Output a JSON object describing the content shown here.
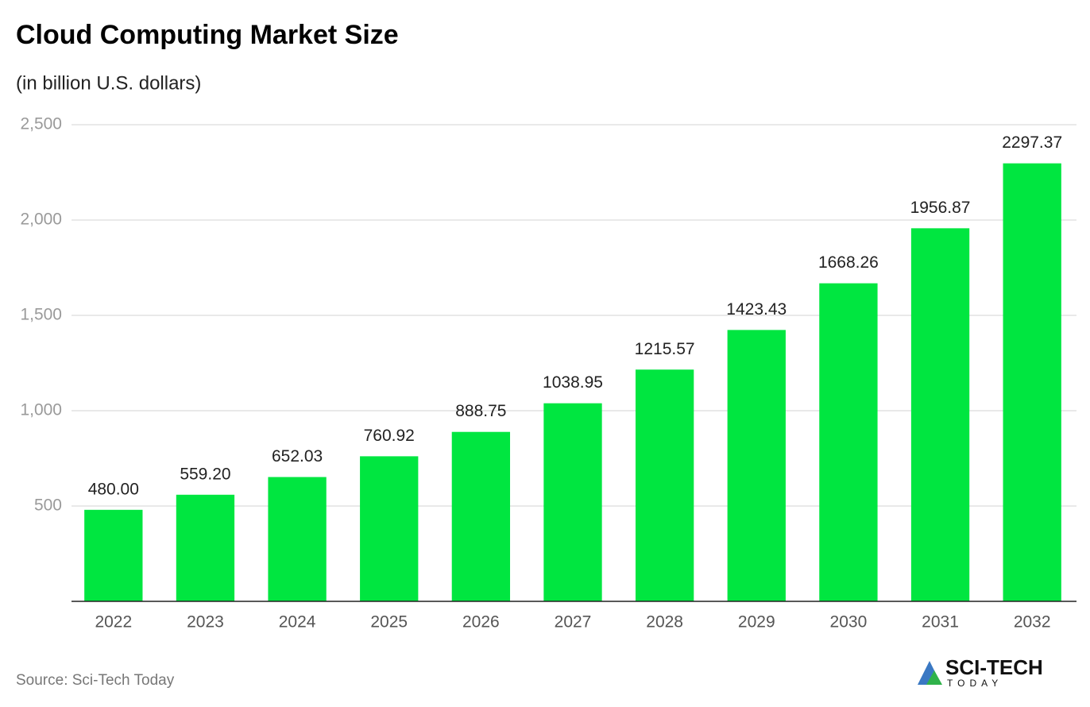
{
  "chart_data": {
    "type": "bar",
    "title": "Cloud Computing Market Size",
    "subtitle": "(in billion U.S. dollars)",
    "categories": [
      "2022",
      "2023",
      "2024",
      "2025",
      "2026",
      "2027",
      "2028",
      "2029",
      "2030",
      "2031",
      "2032"
    ],
    "values": [
      480,
      559.2,
      652.03,
      760.92,
      888.75,
      1038.95,
      1215.57,
      1423.43,
      1668.26,
      1956.87,
      2297.37
    ],
    "value_labels": [
      "480.00",
      "559.20",
      "652.03",
      "760.92",
      "888.75",
      "1038.95",
      "1215.57",
      "1423.43",
      "1668.26",
      "1956.87",
      "2297.37"
    ],
    "color": "#00e640",
    "ylim": [
      0,
      2500
    ],
    "yticks": [
      500,
      {
        "value": 1000,
        "label": "1,000"
      },
      {
        "value": 1500,
        "label": "1,500"
      },
      {
        "value": 2000,
        "label": "2,000"
      },
      {
        "value": 2500,
        "label": "2,500"
      }
    ],
    "grid": true,
    "source": "Source: Sci-Tech Today"
  },
  "logo": {
    "name": "SCI-TECH",
    "tagline": "TODAY"
  }
}
